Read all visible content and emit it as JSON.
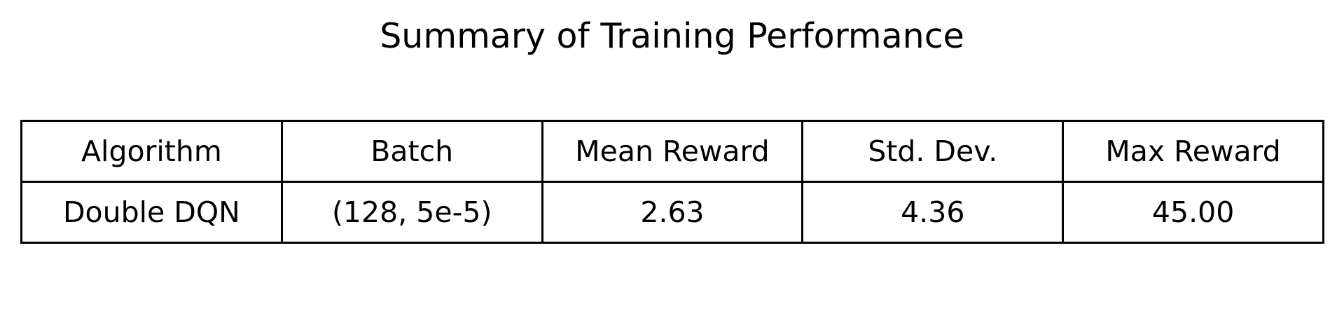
{
  "chart_data": {
    "type": "table",
    "title": "Summary of Training Performance",
    "columns": [
      "Algorithm",
      "Batch",
      "Mean Reward",
      "Std. Dev.",
      "Max Reward"
    ],
    "rows": [
      [
        "Double DQN",
        "(128, 5e-5)",
        "2.63",
        "4.36",
        "45.00"
      ]
    ]
  }
}
